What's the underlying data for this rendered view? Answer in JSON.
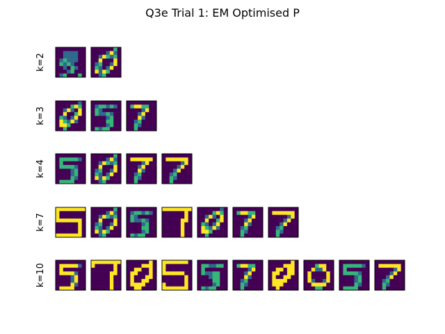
{
  "chart_data": {
    "type": "heatmap",
    "title": "Q3e Trial 1: EM Optimised P",
    "colormap": "viridis",
    "grid": false,
    "rows": [
      {
        "label": "k=2",
        "images": [
          [
            "........",
            "..++++..",
            "..++++..",
            ".+o+++..",
            ".o+o+...",
            "..+.o+..",
            "...+o...",
            ".+o...o."
          ],
          [
            "......o.",
            "....+O+.",
            "..+Oo+o.",
            "..O...O.",
            ".+o..+O.",
            ".o+.+O..",
            ".O+Oo...",
            "..+o...."
          ]
        ]
      },
      {
        "label": "k=3",
        "images": [
          [
            "......+.",
            "....oOo.",
            "..+O+.O.",
            "..O..oO.",
            ".o+.+O..",
            ".Oo+O+..",
            ".OOo....",
            "..o....."
          ],
          [
            "........",
            ".+oo+o+.",
            ".o+.....",
            ".o++o+..",
            "....+o..",
            "....oo..",
            "....+o..",
            ".o+oo..."
          ],
          [
            "........",
            ".oOOoo..",
            "....+O..",
            "...+O...",
            "...O+...",
            "..+o....",
            "..o+....",
            "..o....."
          ]
        ]
      },
      {
        "label": "k=4",
        "images": [
          [
            "........",
            ".ooooo+.",
            ".o......",
            ".oooo+..",
            "....+o..",
            "....+o..",
            "....o+..",
            ".oooo..."
          ],
          [
            "......o.",
            "....+O+.",
            "..+Oo+o.",
            "..O...O.",
            ".+o..+O.",
            ".o+.+O..",
            ".O+Oo...",
            "..+o...."
          ],
          [
            "........",
            ".OOOOOO.",
            "....+O..",
            "...+O...",
            "...O+...",
            "..+o....",
            "..o+....",
            "..o....."
          ],
          [
            "........",
            ".OOOOOO.",
            ".....+O.",
            "....+O..",
            "...+O...",
            "..+o....",
            "..o+....",
            "..o....."
          ]
        ]
      },
      {
        "label": "k=7",
        "images": [
          [
            "OOOOOOOO",
            "O.......",
            "O.......",
            "OOOOOOO.",
            "......O.",
            "......O.",
            "......O.",
            "OOOOOOO."
          ],
          [
            "......o.",
            "....+O+.",
            "..+Oo+o.",
            "..O...O.",
            ".+o..+O.",
            ".o+.+O..",
            ".O+Oo...",
            "..+o...."
          ],
          [
            "........",
            ".+oo+o+.",
            ".o+.....",
            ".o++o+..",
            "....+o..",
            "....oo..",
            "....+o..",
            ".o+oo..."
          ],
          [
            "OOOOOOOO",
            "......O.",
            "......O.",
            ".....OO.",
            ".....O..",
            ".....O..",
            ".....O..",
            ".....O.."
          ],
          [
            "......+.",
            "....oOo.",
            "..+O+.O.",
            "..O..oO.",
            ".o+.+O..",
            ".Oo+O+..",
            ".OOo....",
            "..o....."
          ],
          [
            "........",
            ".oOOoo..",
            "....+O..",
            "...+O...",
            "...O+...",
            "..+o....",
            "..o+....",
            "..o....."
          ],
          [
            "........",
            ".OOOOOO.",
            ".....+O.",
            "....+O..",
            "...+O...",
            "..+o....",
            "..o+....",
            "..o....."
          ]
        ]
      },
      {
        "label": "k=10",
        "images": [
          [
            "........",
            ".OOOOO+.",
            ".O......",
            ".OOOO+..",
            "....+O..",
            "....+O..",
            "....O+..",
            ".OOOO..."
          ],
          [
            "OOOOOOOO",
            "O.....O.",
            "......O.",
            ".....OO.",
            ".....O..",
            ".....O..",
            ".....O..",
            ".....O.."
          ],
          [
            "......O.",
            "....OOO.",
            "..OO..O.",
            ".OO...O.",
            ".O...OO.",
            ".O..OO..",
            ".OOOO...",
            "..OO...."
          ],
          [
            "OOOOOOO.",
            "O.......",
            "O.......",
            "OOOOOO..",
            "......O.",
            "......O.",
            "O.....O.",
            "OOOOOOO."
          ],
          [
            "........",
            ".oo++oo.",
            ".o......",
            ".o++oo..",
            "...+oo..",
            "....oo..",
            "....+o..",
            ".o+oo..."
          ],
          [
            "........",
            ".oOOoo..",
            "....+O..",
            "...+O...",
            "...O+...",
            "..+o....",
            "..o+....",
            "..o....."
          ],
          [
            "......O.",
            "....OOO.",
            "..OO.OO.",
            ".OO..OO.",
            ".O..OO..",
            ".OOOO...",
            ".OOO....",
            "..O....."
          ],
          [
            "........",
            "...oOO..",
            "..O++O..",
            ".O....O.",
            ".O....O.",
            ".O+..+O.",
            "..OOOO..",
            "...oo..."
          ],
          [
            "........",
            ".ooooo+.",
            ".o......",
            ".oooo+..",
            "....+o..",
            "....+o..",
            "....o+..",
            ".oooo..."
          ],
          [
            "........",
            ".OOOOOO.",
            ".....+O.",
            "....+O..",
            "...+O...",
            "..+o....",
            "..o+....",
            "..o....."
          ]
        ]
      }
    ]
  }
}
